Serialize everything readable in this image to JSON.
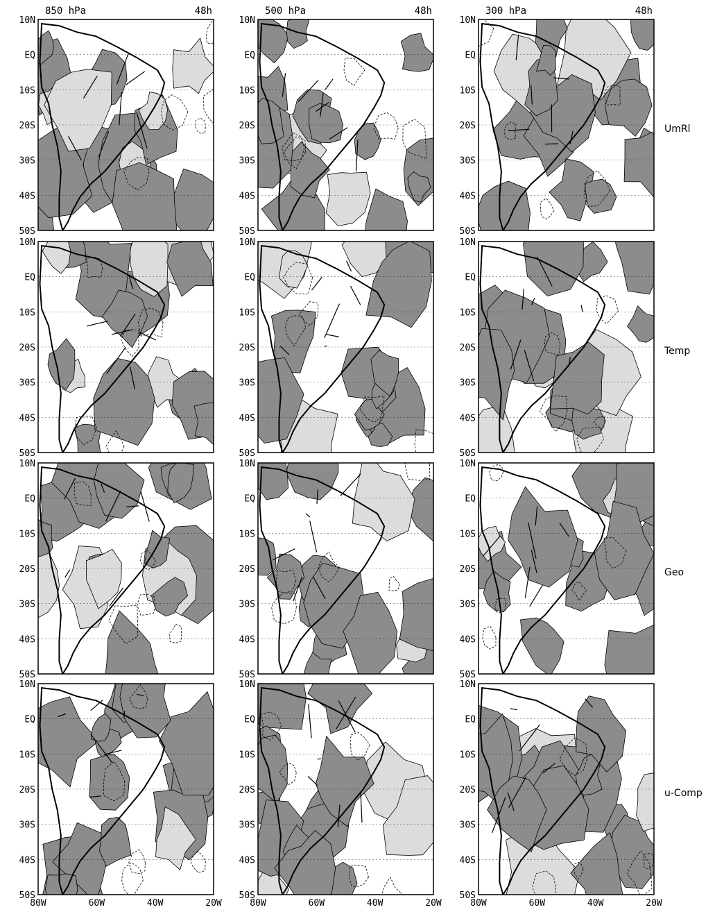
{
  "columns": [
    {
      "level": "850 hPa",
      "time": "48h"
    },
    {
      "level": "500 hPa",
      "time": "48h"
    },
    {
      "level": "300 hPa",
      "time": "48h"
    }
  ],
  "rows": [
    "UmRl",
    "Temp",
    "Geo",
    "u-Comp"
  ],
  "lat_labels": [
    "10N",
    "EQ",
    "10S",
    "20S",
    "30S",
    "40S",
    "50S"
  ],
  "lon_labels": [
    "80W",
    "60W",
    "40W",
    "20W"
  ],
  "colors": {
    "shade_dark": "#8c8c8c",
    "shade_light": "#dcdcdc",
    "background": "#ffffff",
    "line": "#000000"
  }
}
